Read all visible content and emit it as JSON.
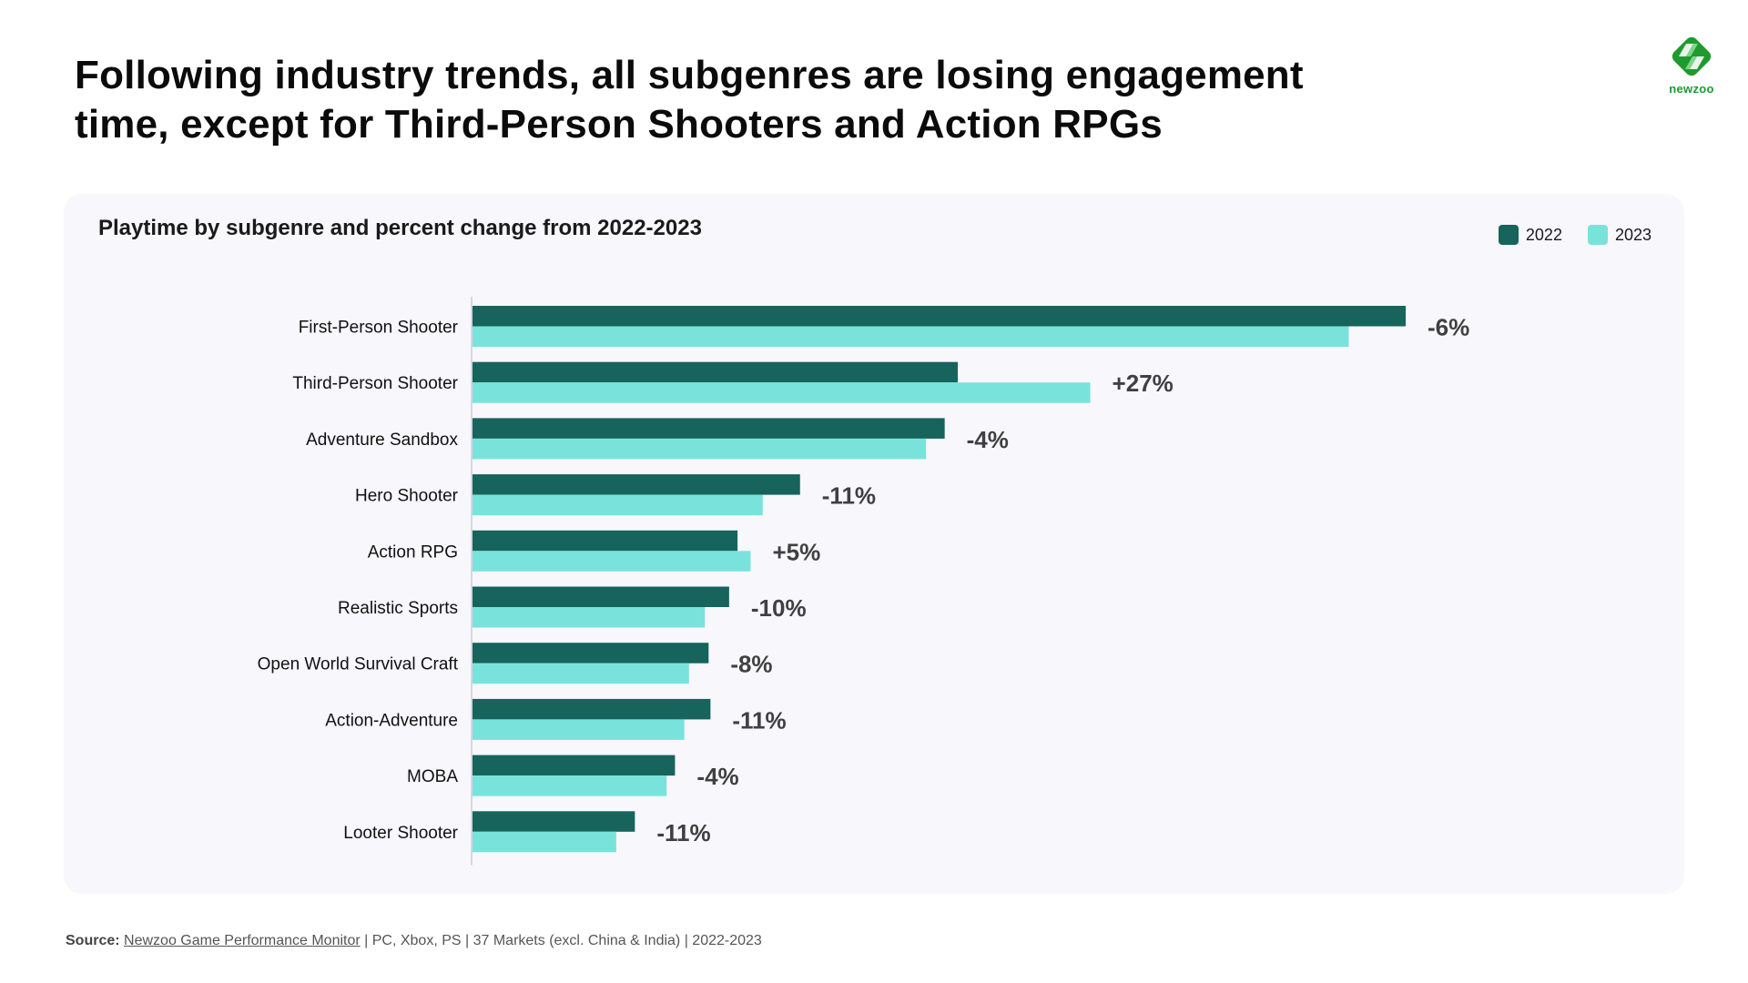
{
  "header": {
    "title_line1": "Following industry trends, all subgenres are losing engagement",
    "title_line2": "time, except for Third-Person Shooters and Action RPGs",
    "logo_text": "newzoo",
    "logo_icon": "newzoo-logo-icon"
  },
  "colors": {
    "series_2022": "#16645c",
    "series_2023": "#79e3db",
    "card_background": "#f7f7fc",
    "brand_green": "#1f9a2f"
  },
  "chart_data": {
    "type": "bar",
    "orientation": "horizontal",
    "title": "Playtime by subgenre and percent change from 2022-2023",
    "xlabel": "",
    "ylabel": "",
    "value_note": "Relative playtime index, First-Person Shooter 2022 = 100 (no axis shown; estimated from bar lengths)",
    "xlim": [
      0,
      100
    ],
    "grid": false,
    "legend_position": "top-right",
    "categories": [
      "First-Person Shooter",
      "Third-Person Shooter",
      "Adventure Sandbox",
      "Hero Shooter",
      "Action RPG",
      "Realistic Sports",
      "Open World Survival Craft",
      "Action-Adventure",
      "MOBA",
      "Looter Shooter"
    ],
    "series": [
      {
        "name": "2022",
        "values": [
          100,
          52.0,
          50.6,
          35.1,
          28.4,
          27.5,
          25.3,
          25.5,
          21.7,
          17.4
        ]
      },
      {
        "name": "2023",
        "values": [
          93.9,
          66.2,
          48.6,
          31.1,
          29.8,
          24.9,
          23.2,
          22.7,
          20.8,
          15.4
        ]
      }
    ],
    "annotations": [
      "-6%",
      "+27%",
      "-4%",
      "-11%",
      "+5%",
      "-10%",
      "-8%",
      "-11%",
      "-4%",
      "-11%"
    ]
  },
  "footer": {
    "source_label": "Source:",
    "source_link": "Newzoo Game Performance Monitor",
    "source_rest": " | PC, Xbox, PS | 37 Markets (excl. China & India) | 2022-2023"
  }
}
